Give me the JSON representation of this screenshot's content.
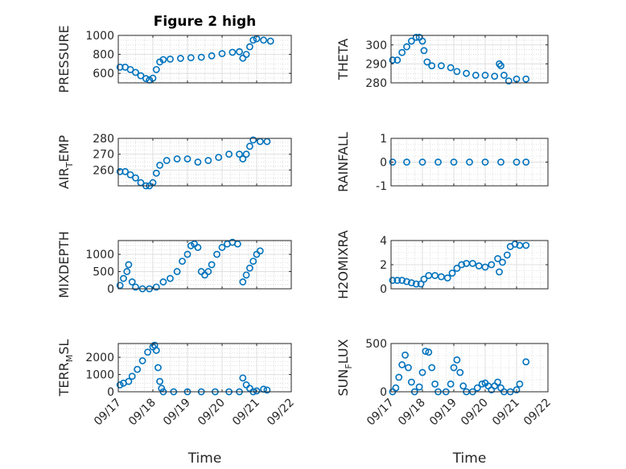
{
  "colors": {
    "marker": "#0072BD",
    "axis": "#262626",
    "grid": "#dfdfdf",
    "minor_grid": "#c8c8c8"
  },
  "xlabel": "Time",
  "xticks": [
    "09/17",
    "09/18",
    "09/19",
    "09/20",
    "09/21",
    "09/22"
  ],
  "chart_data": [
    {
      "type": "scatter",
      "title": "Figure 2 high",
      "ylabel": "PRESSURE",
      "ylim": [
        500,
        1000
      ],
      "yticks": [
        600,
        800,
        1000
      ],
      "xlim": [
        0,
        5
      ],
      "grid": true,
      "marker": "open-circle",
      "points": [
        [
          0.05,
          665
        ],
        [
          0.2,
          665
        ],
        [
          0.35,
          640
        ],
        [
          0.5,
          610
        ],
        [
          0.65,
          575
        ],
        [
          0.8,
          545
        ],
        [
          0.9,
          530
        ],
        [
          1.0,
          550
        ],
        [
          1.1,
          640
        ],
        [
          1.2,
          720
        ],
        [
          1.3,
          745
        ],
        [
          1.5,
          750
        ],
        [
          1.8,
          758
        ],
        [
          2.1,
          765
        ],
        [
          2.4,
          770
        ],
        [
          2.7,
          785
        ],
        [
          3.0,
          808
        ],
        [
          3.3,
          822
        ],
        [
          3.5,
          828
        ],
        [
          3.6,
          760
        ],
        [
          3.7,
          800
        ],
        [
          3.8,
          880
        ],
        [
          3.9,
          950
        ],
        [
          4.0,
          965
        ],
        [
          4.2,
          950
        ],
        [
          4.4,
          940
        ]
      ]
    },
    {
      "type": "scatter",
      "title": "",
      "ylabel": "THETA",
      "ylim": [
        280,
        305
      ],
      "yticks": [
        280,
        290,
        300
      ],
      "xlim": [
        0,
        5
      ],
      "grid": true,
      "marker": "open-circle",
      "points": [
        [
          0.05,
          292
        ],
        [
          0.2,
          292
        ],
        [
          0.35,
          296
        ],
        [
          0.5,
          299
        ],
        [
          0.65,
          302
        ],
        [
          0.8,
          304
        ],
        [
          0.9,
          304
        ],
        [
          1.0,
          302
        ],
        [
          1.05,
          297
        ],
        [
          1.15,
          291
        ],
        [
          1.3,
          289
        ],
        [
          1.6,
          289
        ],
        [
          1.9,
          288
        ],
        [
          2.1,
          286
        ],
        [
          2.4,
          285
        ],
        [
          2.7,
          284
        ],
        [
          3.0,
          284
        ],
        [
          3.3,
          283.5
        ],
        [
          3.45,
          290
        ],
        [
          3.5,
          289
        ],
        [
          3.6,
          284
        ],
        [
          3.75,
          281
        ],
        [
          4.0,
          282
        ],
        [
          4.3,
          282
        ]
      ]
    },
    {
      "type": "scatter",
      "title": "",
      "ylabel": "AIR_TEMP",
      "ylim": [
        250,
        280
      ],
      "yticks": [
        260,
        270,
        280
      ],
      "xlim": [
        0,
        5
      ],
      "grid": true,
      "marker": "open-circle",
      "points": [
        [
          0.05,
          259
        ],
        [
          0.2,
          259
        ],
        [
          0.35,
          257
        ],
        [
          0.5,
          255
        ],
        [
          0.65,
          252
        ],
        [
          0.8,
          250
        ],
        [
          0.9,
          250
        ],
        [
          1.0,
          252
        ],
        [
          1.1,
          258
        ],
        [
          1.2,
          263
        ],
        [
          1.4,
          266
        ],
        [
          1.7,
          267
        ],
        [
          2.0,
          267
        ],
        [
          2.3,
          265
        ],
        [
          2.6,
          266
        ],
        [
          2.9,
          268
        ],
        [
          3.2,
          270
        ],
        [
          3.5,
          270
        ],
        [
          3.6,
          267
        ],
        [
          3.7,
          270
        ],
        [
          3.8,
          275
        ],
        [
          3.9,
          279
        ],
        [
          4.1,
          278
        ],
        [
          4.3,
          278
        ]
      ]
    },
    {
      "type": "scatter",
      "title": "",
      "ylabel": "RAINFALL",
      "ylim": [
        -1,
        1
      ],
      "yticks": [
        -1,
        0,
        1
      ],
      "xlim": [
        0,
        5
      ],
      "grid": true,
      "marker": "open-circle",
      "points": [
        [
          0.05,
          0
        ],
        [
          0.5,
          0
        ],
        [
          1.0,
          0
        ],
        [
          1.5,
          0
        ],
        [
          2.0,
          0
        ],
        [
          2.5,
          0
        ],
        [
          3.0,
          0
        ],
        [
          3.5,
          0
        ],
        [
          4.0,
          0
        ],
        [
          4.3,
          0
        ]
      ]
    },
    {
      "type": "scatter",
      "title": "",
      "ylabel": "MIXDEPTH",
      "ylim": [
        0,
        1400
      ],
      "yticks": [
        0,
        500,
        1000
      ],
      "xlim": [
        0,
        5
      ],
      "grid": true,
      "marker": "open-circle",
      "points": [
        [
          0.05,
          100
        ],
        [
          0.15,
          300
        ],
        [
          0.25,
          500
        ],
        [
          0.3,
          700
        ],
        [
          0.4,
          200
        ],
        [
          0.5,
          50
        ],
        [
          0.7,
          0
        ],
        [
          0.9,
          0
        ],
        [
          1.1,
          50
        ],
        [
          1.3,
          200
        ],
        [
          1.5,
          300
        ],
        [
          1.7,
          500
        ],
        [
          1.85,
          800
        ],
        [
          2.0,
          1000
        ],
        [
          2.1,
          1250
        ],
        [
          2.2,
          1300
        ],
        [
          2.3,
          1200
        ],
        [
          2.4,
          500
        ],
        [
          2.5,
          400
        ],
        [
          2.6,
          500
        ],
        [
          2.7,
          700
        ],
        [
          2.85,
          1000
        ],
        [
          3.0,
          1200
        ],
        [
          3.15,
          1300
        ],
        [
          3.3,
          1350
        ],
        [
          3.45,
          1300
        ],
        [
          3.6,
          200
        ],
        [
          3.7,
          400
        ],
        [
          3.8,
          600
        ],
        [
          3.9,
          800
        ],
        [
          4.0,
          1000
        ],
        [
          4.1,
          1100
        ]
      ]
    },
    {
      "type": "scatter",
      "title": "",
      "ylabel": "H2OMIXRA",
      "ylim": [
        0,
        4
      ],
      "yticks": [
        0,
        2,
        4
      ],
      "xlim": [
        0,
        5
      ],
      "grid": true,
      "marker": "open-circle",
      "points": [
        [
          0.05,
          0.7
        ],
        [
          0.2,
          0.7
        ],
        [
          0.35,
          0.7
        ],
        [
          0.5,
          0.6
        ],
        [
          0.65,
          0.5
        ],
        [
          0.8,
          0.4
        ],
        [
          0.95,
          0.4
        ],
        [
          1.05,
          0.8
        ],
        [
          1.2,
          1.1
        ],
        [
          1.4,
          1.1
        ],
        [
          1.6,
          1.0
        ],
        [
          1.8,
          0.9
        ],
        [
          1.95,
          1.3
        ],
        [
          2.1,
          1.7
        ],
        [
          2.25,
          2.0
        ],
        [
          2.4,
          2.1
        ],
        [
          2.6,
          2.1
        ],
        [
          2.8,
          1.9
        ],
        [
          3.0,
          1.8
        ],
        [
          3.2,
          2.0
        ],
        [
          3.4,
          2.5
        ],
        [
          3.45,
          1.4
        ],
        [
          3.55,
          2.2
        ],
        [
          3.7,
          2.8
        ],
        [
          3.8,
          3.5
        ],
        [
          3.95,
          3.7
        ],
        [
          4.1,
          3.6
        ],
        [
          4.3,
          3.6
        ]
      ]
    },
    {
      "type": "scatter",
      "title": "",
      "ylabel": "TERR_MSL",
      "ylim": [
        0,
        2800
      ],
      "yticks": [
        0,
        1000,
        2000
      ],
      "xlim": [
        0,
        5
      ],
      "grid": true,
      "marker": "open-circle",
      "points": [
        [
          0.05,
          400
        ],
        [
          0.15,
          500
        ],
        [
          0.3,
          600
        ],
        [
          0.4,
          900
        ],
        [
          0.55,
          1300
        ],
        [
          0.7,
          1800
        ],
        [
          0.85,
          2300
        ],
        [
          1.0,
          2600
        ],
        [
          1.05,
          2700
        ],
        [
          1.1,
          2400
        ],
        [
          1.15,
          1400
        ],
        [
          1.2,
          600
        ],
        [
          1.25,
          200
        ],
        [
          1.3,
          0
        ],
        [
          1.6,
          0
        ],
        [
          2.0,
          0
        ],
        [
          2.4,
          0
        ],
        [
          2.8,
          0
        ],
        [
          3.2,
          0
        ],
        [
          3.5,
          0
        ],
        [
          3.6,
          800
        ],
        [
          3.7,
          400
        ],
        [
          3.8,
          200
        ],
        [
          3.9,
          0
        ],
        [
          4.0,
          50
        ],
        [
          4.2,
          150
        ],
        [
          4.3,
          100
        ]
      ]
    },
    {
      "type": "scatter",
      "title": "",
      "ylabel": "SUN_FLUX",
      "ylim": [
        0,
        500
      ],
      "yticks": [
        0,
        500
      ],
      "xlim": [
        0,
        5
      ],
      "grid": true,
      "marker": "open-circle",
      "points": [
        [
          0.05,
          0
        ],
        [
          0.15,
          40
        ],
        [
          0.25,
          150
        ],
        [
          0.35,
          280
        ],
        [
          0.45,
          380
        ],
        [
          0.55,
          250
        ],
        [
          0.65,
          100
        ],
        [
          0.75,
          0
        ],
        [
          0.9,
          50
        ],
        [
          1.0,
          200
        ],
        [
          1.1,
          420
        ],
        [
          1.2,
          410
        ],
        [
          1.3,
          250
        ],
        [
          1.4,
          80
        ],
        [
          1.5,
          0
        ],
        [
          1.75,
          0
        ],
        [
          1.9,
          80
        ],
        [
          2.0,
          250
        ],
        [
          2.1,
          330
        ],
        [
          2.2,
          200
        ],
        [
          2.3,
          60
        ],
        [
          2.4,
          0
        ],
        [
          2.6,
          0
        ],
        [
          2.75,
          40
        ],
        [
          2.9,
          80
        ],
        [
          3.0,
          90
        ],
        [
          3.1,
          60
        ],
        [
          3.2,
          20
        ],
        [
          3.3,
          60
        ],
        [
          3.4,
          100
        ],
        [
          3.5,
          40
        ],
        [
          3.6,
          0
        ],
        [
          3.8,
          0
        ],
        [
          4.0,
          20
        ],
        [
          4.1,
          80
        ],
        [
          4.3,
          310
        ]
      ]
    }
  ]
}
